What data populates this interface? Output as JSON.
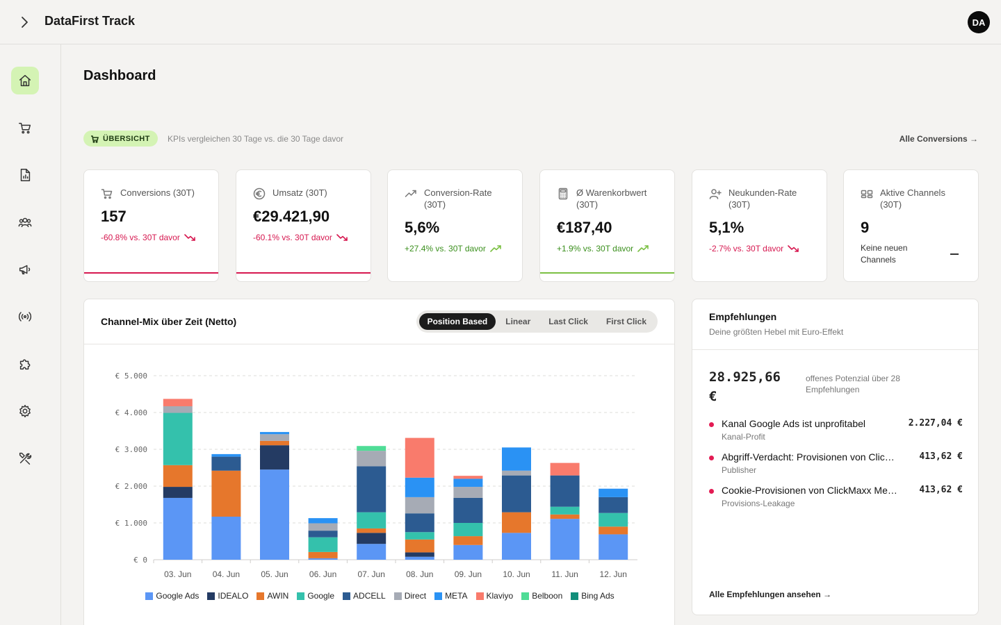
{
  "app": {
    "title": "DataFirst Track",
    "avatar": "DA"
  },
  "page": {
    "title": "Dashboard"
  },
  "overview": {
    "badge": "ÜBERSICHT",
    "subtitle": "KPIs vergleichen 30 Tage vs. die 30 Tage davor",
    "link": "Alle Conversions →"
  },
  "kpis": [
    {
      "label": "Conversions (30T)",
      "value": "157",
      "delta": "-60.8% vs. 30T davor",
      "trend": "neg",
      "icon": "cart-icon"
    },
    {
      "label": "Umsatz (30T)",
      "value": "€29.421,90",
      "delta": "-60.1% vs. 30T davor",
      "trend": "neg",
      "icon": "euro-icon"
    },
    {
      "label": "Conversion-Rate (30T)",
      "value": "5,6%",
      "delta": "+27.4% vs. 30T davor",
      "trend": "pos",
      "icon": "trend-icon"
    },
    {
      "label": "Ø Warenkorbwert (30T)",
      "value": "€187,40",
      "delta": "+1.9% vs. 30T davor",
      "trend": "pos",
      "icon": "calculator-icon"
    },
    {
      "label": "Neukunden-Rate (30T)",
      "value": "5,1%",
      "delta": "-2.7% vs. 30T davor",
      "trend": "neg",
      "icon": "user-plus-icon"
    },
    {
      "label": "Aktive Channels (30T)",
      "value": "9",
      "note": "Keine neuen Channels",
      "icon": "channels-icon"
    }
  ],
  "colors": {
    "negative": "#d6174f",
    "positive": "#7bc043",
    "accent": "#d4f3b4"
  },
  "chart": {
    "title": "Channel-Mix über Zeit (Netto)",
    "modes": [
      "Position Based",
      "Linear",
      "Last Click",
      "First Click"
    ],
    "active_mode": "Position Based"
  },
  "chart_data": {
    "type": "bar",
    "stacked": true,
    "categories": [
      "03. Jun",
      "04. Jun",
      "05. Jun",
      "06. Jun",
      "07. Jun",
      "08. Jun",
      "09. Jun",
      "10. Jun",
      "11. Jun",
      "12. Jun"
    ],
    "ylim": [
      0,
      5000
    ],
    "yticks": [
      0,
      1000,
      2000,
      3000,
      4000,
      5000
    ],
    "ytick_labels": [
      "€ 0",
      "€ 1.000",
      "€ 2.000",
      "€ 3.000",
      "€ 4.000",
      "€ 5.000"
    ],
    "grid": true,
    "legend": "bottom",
    "series": [
      {
        "name": "Google Ads",
        "color": "#5b96f5",
        "values": [
          1680,
          1170,
          2450,
          40,
          430,
          80,
          400,
          730,
          1110,
          690
        ]
      },
      {
        "name": "IDEALO",
        "color": "#243b63",
        "values": [
          300,
          0,
          660,
          0,
          300,
          120,
          0,
          0,
          0,
          0
        ]
      },
      {
        "name": "AWIN",
        "color": "#e6772c",
        "values": [
          590,
          1250,
          120,
          170,
          120,
          350,
          240,
          560,
          120,
          210
        ]
      },
      {
        "name": "Google",
        "color": "#34c1ac",
        "values": [
          1420,
          0,
          0,
          400,
          440,
          200,
          360,
          0,
          210,
          370
        ]
      },
      {
        "name": "ADCELL",
        "color": "#2c5b91",
        "values": [
          0,
          380,
          0,
          180,
          1250,
          510,
          680,
          1000,
          850,
          430
        ]
      },
      {
        "name": "Direct",
        "color": "#a6abb5",
        "values": [
          180,
          0,
          180,
          200,
          420,
          440,
          300,
          130,
          0,
          0
        ]
      },
      {
        "name": "META",
        "color": "#2a92f4",
        "values": [
          0,
          70,
          60,
          140,
          0,
          530,
          220,
          630,
          0,
          230
        ]
      },
      {
        "name": "Klaviyo",
        "color": "#f97b6c",
        "values": [
          200,
          0,
          0,
          0,
          0,
          1080,
          80,
          0,
          340,
          0
        ]
      },
      {
        "name": "Belboon",
        "color": "#4fdc96",
        "values": [
          0,
          0,
          0,
          0,
          130,
          0,
          0,
          0,
          0,
          0
        ]
      },
      {
        "name": "Bing Ads",
        "color": "#118e7a",
        "values": [
          0,
          0,
          0,
          0,
          0,
          0,
          0,
          0,
          0,
          0
        ]
      }
    ]
  },
  "recommendations": {
    "title": "Empfehlungen",
    "subtitle": "Deine größten Hebel mit Euro-Effekt",
    "total": "28.925,66 €",
    "total_note": "offenes Potenzial über 28 Empfehlungen",
    "items": [
      {
        "title": "Kanal Google Ads ist unprofitabel",
        "sub": "Kanal-Profit",
        "amount": "2.227,04 €"
      },
      {
        "title": "Abgriff-Verdacht: Provisionen von ClickMaxx Media",
        "sub": "Publisher",
        "amount": "413,62 €"
      },
      {
        "title": "Cookie-Provisionen von ClickMaxx Media",
        "sub": "Provisions-Leakage",
        "amount": "413,62 €"
      }
    ],
    "all_link": "Alle Empfehlungen ansehen →"
  }
}
